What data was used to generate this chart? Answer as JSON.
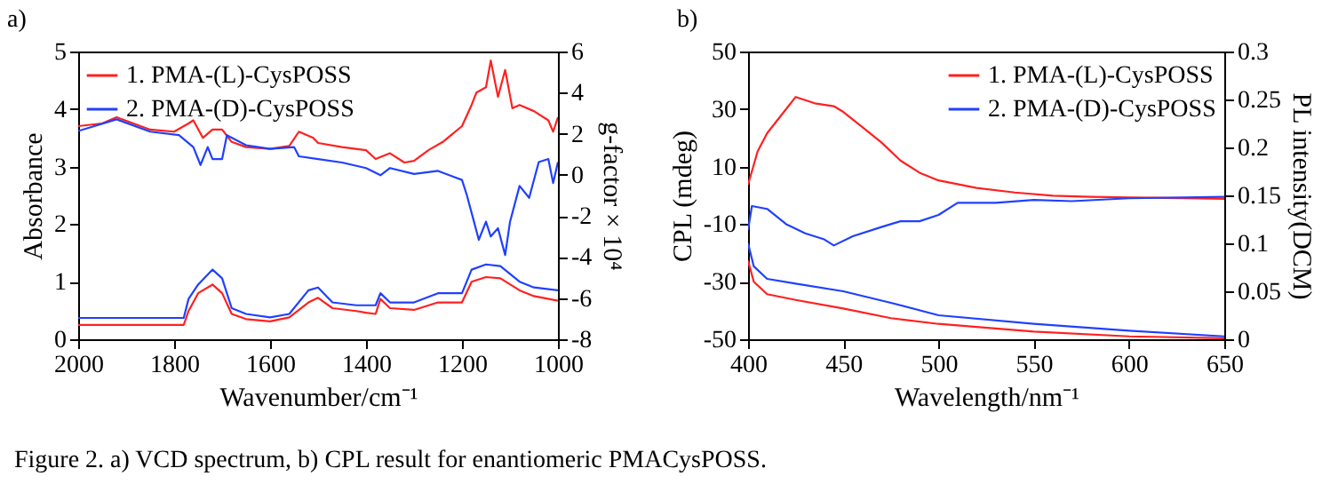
{
  "chart_data": [
    {
      "type": "line",
      "title": "a)",
      "xlabel": "Wavenumber/cm⁻¹",
      "ylabel": "Absorbance",
      "y2label": "g-factor × 10⁴",
      "xlim": [
        2000,
        1000
      ],
      "xticks": [
        2000,
        1800,
        1600,
        1400,
        1200,
        1000
      ],
      "ylim": [
        0,
        5
      ],
      "yticks": [
        0,
        1,
        2,
        3,
        4,
        5
      ],
      "y2lim": [
        -8,
        6
      ],
      "y2ticks": [
        -8,
        -6,
        -4,
        -2,
        0,
        2,
        4,
        6
      ],
      "legend": "top left",
      "grid": false,
      "annotations": [
        "Figure 2. a) VCD spectrum, b) CPL result for enantiomeric PMACysPOSS."
      ],
      "series": [
        {
          "name": "1. PMA-(L)-CysPOSS",
          "color": "#ff2020",
          "axis": "y2",
          "x": [
            2000,
            1950,
            1920,
            1850,
            1800,
            1770,
            1760,
            1740,
            1720,
            1700,
            1680,
            1650,
            1600,
            1560,
            1540,
            1510,
            1500,
            1450,
            1400,
            1380,
            1350,
            1320,
            1300,
            1270,
            1240,
            1200,
            1180,
            1170,
            1150,
            1140,
            1125,
            1110,
            1095,
            1080,
            1050,
            1020,
            1010,
            1000
          ],
          "values": [
            2.37,
            2.5,
            2.8,
            2.2,
            2.1,
            2.5,
            2.65,
            1.8,
            2.2,
            2.2,
            1.6,
            1.35,
            1.26,
            1.4,
            2.1,
            1.8,
            1.55,
            1.35,
            1.2,
            0.77,
            1.05,
            0.6,
            0.68,
            1.2,
            1.6,
            2.37,
            3.4,
            4.0,
            4.26,
            5.56,
            3.8,
            5.1,
            3.24,
            3.4,
            3.1,
            2.65,
            2.1,
            2.8
          ]
        },
        {
          "name": "2. PMA-(D)-CysPOSS",
          "color": "#2040ff",
          "axis": "y2",
          "x": [
            2000,
            1920,
            1850,
            1790,
            1760,
            1745,
            1730,
            1720,
            1700,
            1690,
            1650,
            1600,
            1550,
            1540,
            1500,
            1450,
            1400,
            1370,
            1350,
            1300,
            1250,
            1200,
            1190,
            1175,
            1165,
            1150,
            1140,
            1125,
            1110,
            1100,
            1080,
            1060,
            1040,
            1020,
            1010,
            1000
          ],
          "values": [
            2.13,
            2.7,
            2.1,
            1.93,
            1.35,
            0.48,
            1.35,
            0.77,
            0.77,
            1.93,
            1.44,
            1.26,
            1.35,
            0.9,
            0.77,
            0.6,
            0.33,
            -0.02,
            0.33,
            0.04,
            0.19,
            -0.25,
            -0.98,
            -2.28,
            -3.16,
            -2.28,
            -3.0,
            -2.6,
            -3.9,
            -2.3,
            -0.54,
            -1.12,
            0.62,
            0.77,
            -0.4,
            0.62
          ]
        },
        {
          "color": "#ff2020",
          "x": [
            2000,
            1780,
            1770,
            1750,
            1720,
            1700,
            1680,
            1650,
            1600,
            1560,
            1520,
            1500,
            1470,
            1420,
            1400,
            1380,
            1370,
            1350,
            1300,
            1250,
            1200,
            1180,
            1150,
            1120,
            1080,
            1050,
            1000
          ],
          "values": [
            0.25,
            0.25,
            0.49,
            0.8,
            0.95,
            0.8,
            0.44,
            0.35,
            0.31,
            0.38,
            0.64,
            0.72,
            0.54,
            0.49,
            0.46,
            0.44,
            0.7,
            0.54,
            0.51,
            0.64,
            0.64,
            1.0,
            1.08,
            1.06,
            0.85,
            0.75,
            0.67
          ]
        },
        {
          "color": "#2040ff",
          "x": [
            2000,
            1780,
            1770,
            1750,
            1720,
            1700,
            1680,
            1650,
            1600,
            1560,
            1520,
            1500,
            1470,
            1420,
            1380,
            1370,
            1350,
            1300,
            1250,
            1200,
            1180,
            1150,
            1120,
            1080,
            1050,
            1000
          ],
          "values": [
            0.37,
            0.37,
            0.7,
            0.95,
            1.21,
            1.06,
            0.54,
            0.44,
            0.38,
            0.44,
            0.85,
            0.9,
            0.64,
            0.59,
            0.59,
            0.8,
            0.64,
            0.64,
            0.8,
            0.8,
            1.21,
            1.3,
            1.27,
            1.0,
            0.9,
            0.85
          ]
        }
      ]
    },
    {
      "type": "line",
      "title": "b)",
      "xlabel": "Wavelength/nm⁻¹",
      "ylabel": "CPL (mdeg)",
      "y2label": "PL intensity(DCM)",
      "xlim": [
        400,
        650
      ],
      "xticks": [
        400,
        450,
        500,
        550,
        600,
        650
      ],
      "ylim": [
        -50,
        50
      ],
      "yticks": [
        -50,
        -30,
        -10,
        10,
        30,
        50
      ],
      "y2lim": [
        0,
        0.3
      ],
      "y2ticks": [
        0,
        0.05,
        0.1,
        0.15,
        0.2,
        0.25,
        0.3
      ],
      "legend": "top right",
      "grid": false,
      "series": [
        {
          "name": "1. PMA-(L)-CysPOSS",
          "color": "#ff2020",
          "x": [
            400,
            405,
            410,
            420,
            425,
            435,
            445,
            450,
            460,
            470,
            480,
            490,
            500,
            520,
            540,
            560,
            580,
            600,
            620,
            650
          ],
          "values": [
            3.7,
            15.3,
            21.6,
            30,
            34.2,
            32,
            31,
            29,
            23.7,
            18.4,
            12.1,
            7.9,
            5.2,
            2.6,
            1,
            -0.1,
            -0.5,
            -0.7,
            -0.9,
            -1.2
          ]
        },
        {
          "name": "2. PMA-(D)-CysPOSS",
          "color": "#2040ff",
          "x": [
            400,
            402,
            410,
            420,
            430,
            440,
            445,
            455,
            470,
            480,
            490,
            500,
            510,
            530,
            550,
            570,
            600,
            650
          ],
          "values": [
            -12,
            -3.7,
            -4.7,
            -10,
            -13.2,
            -15.3,
            -17.4,
            -14.2,
            -11,
            -9,
            -9,
            -6.8,
            -2.6,
            -2.6,
            -1.6,
            -2,
            -1,
            -0.5
          ]
        },
        {
          "color": "#ff2020",
          "axis": "y2",
          "x": [
            400,
            403,
            410,
            425,
            450,
            475,
            500,
            550,
            600,
            650
          ],
          "values": [
            0.082,
            0.06,
            0.047,
            0.041,
            0.032,
            0.022,
            0.016,
            0.008,
            0.003,
            0.001
          ]
        },
        {
          "color": "#2040ff",
          "axis": "y2",
          "x": [
            400,
            403,
            410,
            425,
            450,
            475,
            500,
            550,
            600,
            650
          ],
          "values": [
            0.1,
            0.076,
            0.063,
            0.058,
            0.05,
            0.038,
            0.025,
            0.016,
            0.009,
            0.003
          ]
        }
      ]
    }
  ]
}
